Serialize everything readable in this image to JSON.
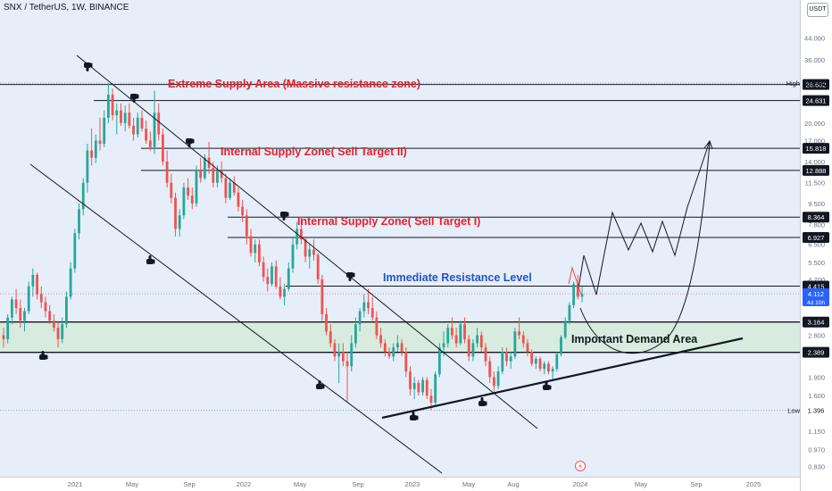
{
  "header": {
    "title": "SNX / TetherUS, 1W, BINANCE",
    "quote_currency": "USDT"
  },
  "chart_data": {
    "type": "candlestick",
    "symbol": "SNX / TetherUS",
    "timeframe": "1W",
    "exchange": "BINANCE",
    "y_scale": "log",
    "ylim": [
      0.78,
      53
    ],
    "x_axis_labels": [
      "2021",
      "May",
      "Sep",
      "2022",
      "May",
      "Sep",
      "2023",
      "May",
      "Aug",
      "2024",
      "May",
      "Sep",
      "2025"
    ],
    "y_tick_labels": [
      {
        "text": "44.000",
        "value": 44.0
      },
      {
        "text": "36.000",
        "value": 36.0
      },
      {
        "text": "20.000",
        "value": 20.0
      },
      {
        "text": "17.000",
        "value": 17.0
      },
      {
        "text": "14.000",
        "value": 14.0
      },
      {
        "text": "11.500",
        "value": 11.5
      },
      {
        "text": "9.500",
        "value": 9.5
      },
      {
        "text": "7.800",
        "value": 7.8
      },
      {
        "text": "6.500",
        "value": 6.5
      },
      {
        "text": "5.500",
        "value": 5.5
      },
      {
        "text": "4.700",
        "value": 4.7
      },
      {
        "text": "3.900",
        "value": 3.9
      },
      {
        "text": "2.800",
        "value": 2.8
      },
      {
        "text": "1.900",
        "value": 1.9
      },
      {
        "text": "1.600",
        "value": 1.6
      },
      {
        "text": "1.150",
        "value": 1.15
      },
      {
        "text": "0.970",
        "value": 0.97
      },
      {
        "text": "0.830",
        "value": 0.83
      }
    ],
    "price_levels": [
      {
        "text": "28.602",
        "value": 28.602
      },
      {
        "text": "24.631",
        "value": 24.631
      },
      {
        "text": "15.818",
        "value": 15.818
      },
      {
        "text": "12.888",
        "value": 12.888
      },
      {
        "text": "8.364",
        "value": 8.364
      },
      {
        "text": "6.927",
        "value": 6.927
      },
      {
        "text": "4.415",
        "value": 4.415
      },
      {
        "text": "3.164",
        "value": 3.164
      },
      {
        "text": "2.389",
        "value": 2.389
      }
    ],
    "high": {
      "label": "High",
      "text": "28.981",
      "value": 28.981
    },
    "low": {
      "label": "Low",
      "text": "1.396",
      "value": 1.396
    },
    "last_price": {
      "text": "4.112",
      "value": 4.112,
      "countdown": "4d 10h"
    },
    "annotations": [
      {
        "text": "Extreme Supply Area (Massive resistance zone)",
        "color": "#e8202a"
      },
      {
        "text": "Internal Supply Zone( Sell Target II)",
        "color": "#e8202a"
      },
      {
        "text": "Internal Supply Zone( Sell Target I)",
        "color": "#e8202a"
      },
      {
        "text": "Immediate Resistance Level",
        "color": "#2554c4"
      },
      {
        "text": "Important Demand Area",
        "color": "#131722"
      }
    ],
    "demand_zone": [
      2.389,
      3.164
    ],
    "candles": [
      [
        2.8,
        3.0,
        2.5,
        2.7
      ],
      [
        2.7,
        3.4,
        2.6,
        3.3
      ],
      [
        3.3,
        4.0,
        3.1,
        3.9
      ],
      [
        3.9,
        4.3,
        3.4,
        3.6
      ],
      [
        3.6,
        3.9,
        3.0,
        3.2
      ],
      [
        3.2,
        3.6,
        2.9,
        3.5
      ],
      [
        3.5,
        4.6,
        3.4,
        4.4
      ],
      [
        4.4,
        5.2,
        4.0,
        4.9
      ],
      [
        4.9,
        5.0,
        3.9,
        4.1
      ],
      [
        4.1,
        4.4,
        3.6,
        3.8
      ],
      [
        3.8,
        4.0,
        3.3,
        3.5
      ],
      [
        3.5,
        3.7,
        3.1,
        3.2
      ],
      [
        3.2,
        3.4,
        2.9,
        3.0
      ],
      [
        3.0,
        3.2,
        2.5,
        2.7
      ],
      [
        2.7,
        3.3,
        2.6,
        3.1
      ],
      [
        3.1,
        4.2,
        3.0,
        4.0
      ],
      [
        4.0,
        5.5,
        3.9,
        5.2
      ],
      [
        5.2,
        7.5,
        5.0,
        7.2
      ],
      [
        7.2,
        9.5,
        6.8,
        9.0
      ],
      [
        9.0,
        12.0,
        8.5,
        11.5
      ],
      [
        11.5,
        16.5,
        10.5,
        15.5
      ],
      [
        15.5,
        19.0,
        13.5,
        14.5
      ],
      [
        14.5,
        18.0,
        13.8,
        17.0
      ],
      [
        17.0,
        21.0,
        15.5,
        16.5
      ],
      [
        16.5,
        22.5,
        16.0,
        21.0
      ],
      [
        21.0,
        28.98,
        20.0,
        26.0
      ],
      [
        26.0,
        27.5,
        20.5,
        21.5
      ],
      [
        21.5,
        24.0,
        18.0,
        22.5
      ],
      [
        22.5,
        24.0,
        19.5,
        20.0
      ],
      [
        20.0,
        23.5,
        18.5,
        22.0
      ],
      [
        22.0,
        24.0,
        19.0,
        19.5
      ],
      [
        19.5,
        21.0,
        17.0,
        18.0
      ],
      [
        18.0,
        22.0,
        17.5,
        21.0
      ],
      [
        21.0,
        22.5,
        18.5,
        19.0
      ],
      [
        19.0,
        20.5,
        16.5,
        17.0
      ],
      [
        17.0,
        18.5,
        15.5,
        16.0
      ],
      [
        16.0,
        27.0,
        15.0,
        22.0
      ],
      [
        22.0,
        24.0,
        17.0,
        18.0
      ],
      [
        18.0,
        19.0,
        13.5,
        14.0
      ],
      [
        14.0,
        15.5,
        11.0,
        11.5
      ],
      [
        11.5,
        12.5,
        9.5,
        10.0
      ],
      [
        10.0,
        10.5,
        7.0,
        7.5
      ],
      [
        7.5,
        9.0,
        7.0,
        8.5
      ],
      [
        8.5,
        11.5,
        8.2,
        11.0
      ],
      [
        11.0,
        12.0,
        9.8,
        10.2
      ],
      [
        10.2,
        11.0,
        9.0,
        9.5
      ],
      [
        9.5,
        13.5,
        9.2,
        13.0
      ],
      [
        13.0,
        14.5,
        11.5,
        12.0
      ],
      [
        12.0,
        15.0,
        11.8,
        14.5
      ],
      [
        14.5,
        16.8,
        12.5,
        13.2
      ],
      [
        13.2,
        14.0,
        11.0,
        11.5
      ],
      [
        11.5,
        13.5,
        11.0,
        12.8
      ],
      [
        12.8,
        14.0,
        11.5,
        12.0
      ],
      [
        12.0,
        12.5,
        9.5,
        10.0
      ],
      [
        10.0,
        12.0,
        9.8,
        11.5
      ],
      [
        11.5,
        12.2,
        10.2,
        10.5
      ],
      [
        10.5,
        11.0,
        8.8,
        9.2
      ],
      [
        9.2,
        9.8,
        8.0,
        8.5
      ],
      [
        8.5,
        9.0,
        6.5,
        7.0
      ],
      [
        7.0,
        7.5,
        5.8,
        6.0
      ],
      [
        6.0,
        6.8,
        5.5,
        6.5
      ],
      [
        6.5,
        6.8,
        5.3,
        5.5
      ],
      [
        5.5,
        5.8,
        4.6,
        4.8
      ],
      [
        4.8,
        5.2,
        4.2,
        4.5
      ],
      [
        4.5,
        5.5,
        4.4,
        5.3
      ],
      [
        5.3,
        5.6,
        4.3,
        4.4
      ],
      [
        4.4,
        4.8,
        3.9,
        4.0
      ],
      [
        4.0,
        4.5,
        3.7,
        4.3
      ],
      [
        4.3,
        5.5,
        4.2,
        5.2
      ],
      [
        5.2,
        7.0,
        5.0,
        6.5
      ],
      [
        6.5,
        8.0,
        6.2,
        7.5
      ],
      [
        7.5,
        8.4,
        6.5,
        6.8
      ],
      [
        6.8,
        7.0,
        5.5,
        5.8
      ],
      [
        5.8,
        6.5,
        5.2,
        6.2
      ],
      [
        6.2,
        6.8,
        5.6,
        5.9
      ],
      [
        5.9,
        6.0,
        4.5,
        4.7
      ],
      [
        4.7,
        4.9,
        3.2,
        3.4
      ],
      [
        3.4,
        3.6,
        2.8,
        2.9
      ],
      [
        2.9,
        3.1,
        2.5,
        2.6
      ],
      [
        2.6,
        2.7,
        2.2,
        2.3
      ],
      [
        2.3,
        2.6,
        1.8,
        2.4
      ],
      [
        2.4,
        2.6,
        2.1,
        2.2
      ],
      [
        2.2,
        2.4,
        1.5,
        2.1
      ],
      [
        2.1,
        2.8,
        2.0,
        2.6
      ],
      [
        2.6,
        3.3,
        2.5,
        3.1
      ],
      [
        3.1,
        3.6,
        2.9,
        3.5
      ],
      [
        3.5,
        4.1,
        3.3,
        3.8
      ],
      [
        3.8,
        4.3,
        3.4,
        3.6
      ],
      [
        3.6,
        4.0,
        3.2,
        3.3
      ],
      [
        3.3,
        3.5,
        2.7,
        2.8
      ],
      [
        2.8,
        3.0,
        2.5,
        2.6
      ],
      [
        2.6,
        2.7,
        2.3,
        2.4
      ],
      [
        2.4,
        2.5,
        2.25,
        2.3
      ],
      [
        2.3,
        2.6,
        2.2,
        2.5
      ],
      [
        2.5,
        2.8,
        2.4,
        2.6
      ],
      [
        2.6,
        2.7,
        2.3,
        2.4
      ],
      [
        2.4,
        2.5,
        1.9,
        2.0
      ],
      [
        2.0,
        2.1,
        1.6,
        1.7
      ],
      [
        1.7,
        1.9,
        1.55,
        1.8
      ],
      [
        1.8,
        1.85,
        1.6,
        1.65
      ],
      [
        1.65,
        1.9,
        1.6,
        1.85
      ],
      [
        1.85,
        1.9,
        1.55,
        1.6
      ],
      [
        1.6,
        1.7,
        1.4,
        1.5
      ],
      [
        1.5,
        2.0,
        1.45,
        1.95
      ],
      [
        1.95,
        2.6,
        1.9,
        2.5
      ],
      [
        2.5,
        2.9,
        2.3,
        2.6
      ],
      [
        2.6,
        3.1,
        2.5,
        3.0
      ],
      [
        3.0,
        3.3,
        2.7,
        2.8
      ],
      [
        2.8,
        3.0,
        2.5,
        2.6
      ],
      [
        2.6,
        3.2,
        2.55,
        3.1
      ],
      [
        3.1,
        3.3,
        2.6,
        2.7
      ],
      [
        2.7,
        2.8,
        2.2,
        2.3
      ],
      [
        2.3,
        2.7,
        2.2,
        2.6
      ],
      [
        2.6,
        3.0,
        2.5,
        2.8
      ],
      [
        2.8,
        2.9,
        2.4,
        2.5
      ],
      [
        2.5,
        2.6,
        2.1,
        2.2
      ],
      [
        2.2,
        2.3,
        1.8,
        1.9
      ],
      [
        1.9,
        2.0,
        1.65,
        1.75
      ],
      [
        1.75,
        2.1,
        1.7,
        2.0
      ],
      [
        2.0,
        2.5,
        1.95,
        2.4
      ],
      [
        2.4,
        2.5,
        2.1,
        2.2
      ],
      [
        2.2,
        2.4,
        2.05,
        2.3
      ],
      [
        2.3,
        3.0,
        2.25,
        2.9
      ],
      [
        2.9,
        3.3,
        2.7,
        2.8
      ],
      [
        2.8,
        2.9,
        2.5,
        2.6
      ],
      [
        2.6,
        2.7,
        2.3,
        2.4
      ],
      [
        2.4,
        2.45,
        2.1,
        2.15
      ],
      [
        2.15,
        2.3,
        2.05,
        2.25
      ],
      [
        2.25,
        2.3,
        2.0,
        2.05
      ],
      [
        2.05,
        2.2,
        1.95,
        2.15
      ],
      [
        2.15,
        2.2,
        1.95,
        2.0
      ],
      [
        2.0,
        2.1,
        1.85,
        2.05
      ],
      [
        2.05,
        2.4,
        2.0,
        2.35
      ],
      [
        2.35,
        2.8,
        2.3,
        2.75
      ],
      [
        2.75,
        3.3,
        2.7,
        3.2
      ],
      [
        3.2,
        3.8,
        3.1,
        3.7
      ],
      [
        3.7,
        4.6,
        3.6,
        4.5
      ],
      [
        4.5,
        4.9,
        3.9,
        4.0
      ],
      [
        4.0,
        4.4,
        3.8,
        4.1
      ]
    ]
  }
}
